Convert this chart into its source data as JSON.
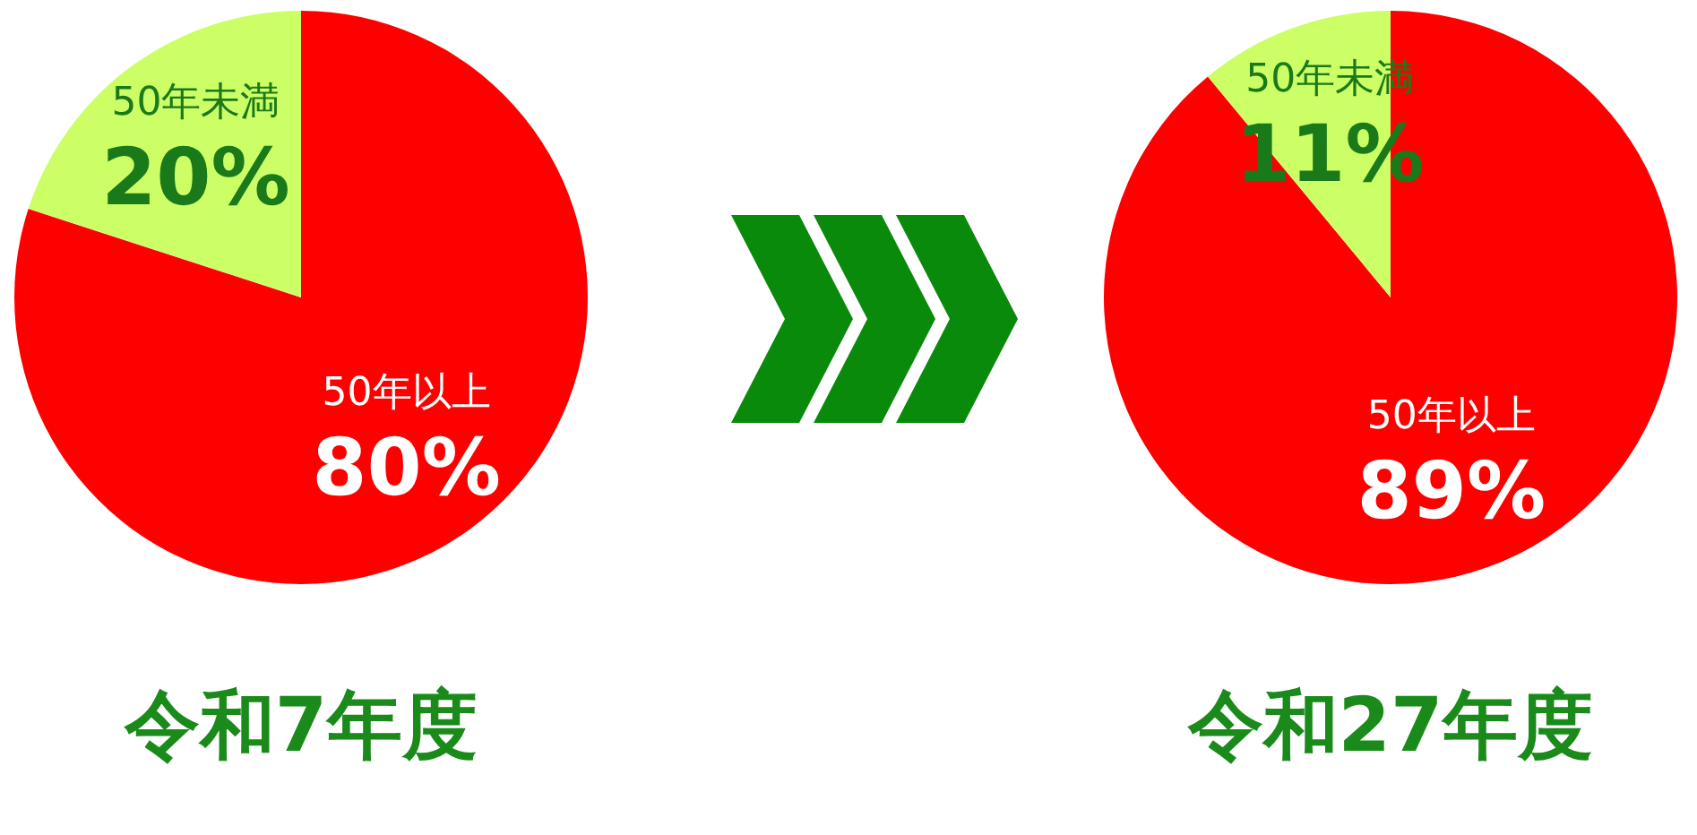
{
  "chart_data": [
    {
      "type": "pie",
      "title": "令和7年度",
      "categories": [
        "50年以上",
        "50年未満"
      ],
      "values": [
        80,
        20
      ],
      "colors": [
        "#ff0000",
        "#ccff66"
      ],
      "value_labels": [
        "80%",
        "20%"
      ],
      "legend": false
    },
    {
      "type": "pie",
      "title": "令和27年度",
      "categories": [
        "50年以上",
        "50年未満"
      ],
      "values": [
        89,
        11
      ],
      "colors": [
        "#ff0000",
        "#ccff66"
      ],
      "value_labels": [
        "89%",
        "11%"
      ],
      "legend": false
    }
  ]
}
